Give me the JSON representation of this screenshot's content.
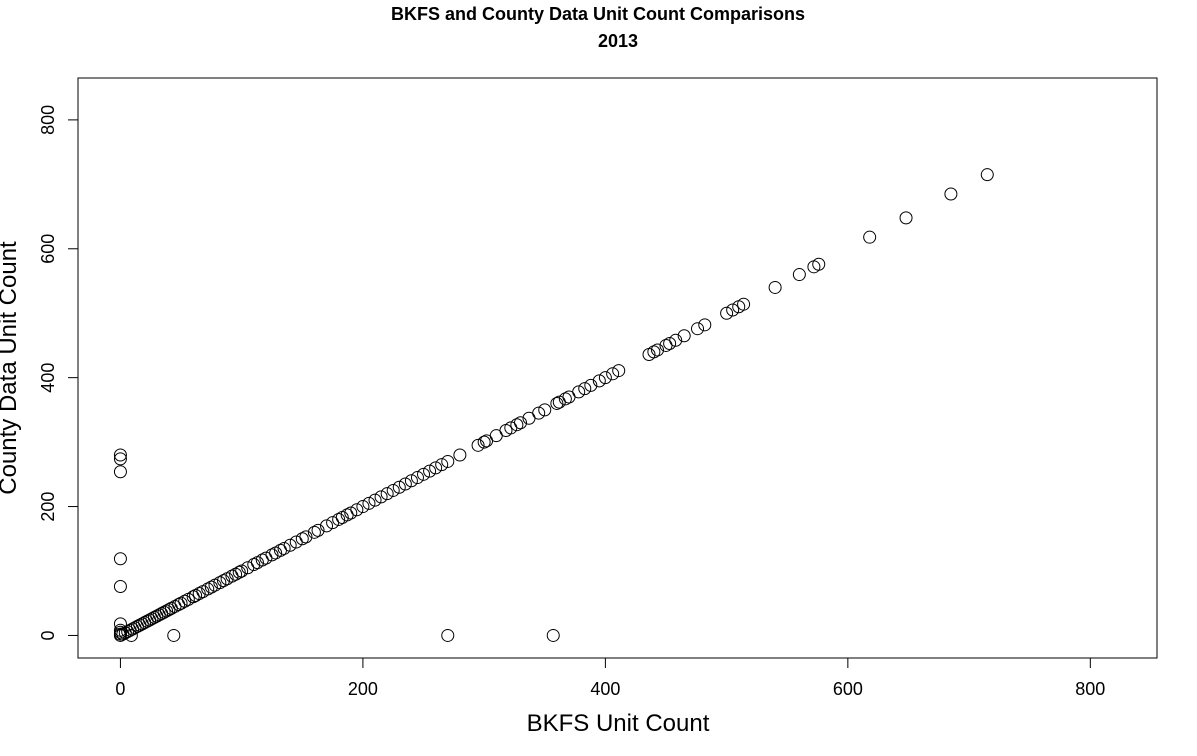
{
  "chart_data": {
    "type": "scatter",
    "title": "BKFS and County Data Unit Count Comparisons",
    "subtitle": "2013",
    "xlabel": "BKFS Unit Count",
    "ylabel": "County Data Unit Count",
    "xlim": [
      -35,
      855
    ],
    "ylim": [
      -35,
      865
    ],
    "x_ticks": [
      0,
      200,
      400,
      600,
      800
    ],
    "y_ticks": [
      0,
      200,
      400,
      600,
      800
    ],
    "grid": false,
    "marker": "open-circle",
    "points": [
      [
        0,
        0
      ],
      [
        0,
        2
      ],
      [
        0,
        5
      ],
      [
        0,
        8
      ],
      [
        0,
        18
      ],
      [
        0,
        76
      ],
      [
        0,
        119
      ],
      [
        0,
        254
      ],
      [
        0,
        274
      ],
      [
        0,
        280
      ],
      [
        9,
        0
      ],
      [
        44,
        0
      ],
      [
        270,
        0
      ],
      [
        357,
        0
      ],
      [
        2,
        2
      ],
      [
        4,
        4
      ],
      [
        6,
        6
      ],
      [
        8,
        8
      ],
      [
        10,
        10
      ],
      [
        12,
        12
      ],
      [
        14,
        14
      ],
      [
        16,
        16
      ],
      [
        18,
        18
      ],
      [
        20,
        20
      ],
      [
        22,
        22
      ],
      [
        24,
        24
      ],
      [
        26,
        26
      ],
      [
        28,
        28
      ],
      [
        30,
        30
      ],
      [
        32,
        32
      ],
      [
        34,
        34
      ],
      [
        36,
        36
      ],
      [
        38,
        38
      ],
      [
        40,
        40
      ],
      [
        42,
        42
      ],
      [
        45,
        45
      ],
      [
        48,
        48
      ],
      [
        50,
        50
      ],
      [
        53,
        53
      ],
      [
        56,
        56
      ],
      [
        60,
        60
      ],
      [
        62,
        62
      ],
      [
        65,
        65
      ],
      [
        68,
        68
      ],
      [
        72,
        72
      ],
      [
        75,
        75
      ],
      [
        78,
        78
      ],
      [
        82,
        82
      ],
      [
        85,
        85
      ],
      [
        88,
        88
      ],
      [
        92,
        92
      ],
      [
        95,
        95
      ],
      [
        98,
        98
      ],
      [
        100,
        100
      ],
      [
        105,
        105
      ],
      [
        110,
        110
      ],
      [
        113,
        113
      ],
      [
        117,
        117
      ],
      [
        120,
        120
      ],
      [
        125,
        125
      ],
      [
        128,
        128
      ],
      [
        132,
        132
      ],
      [
        135,
        135
      ],
      [
        140,
        140
      ],
      [
        145,
        145
      ],
      [
        150,
        150
      ],
      [
        153,
        153
      ],
      [
        160,
        160
      ],
      [
        163,
        163
      ],
      [
        170,
        170
      ],
      [
        175,
        175
      ],
      [
        180,
        180
      ],
      [
        183,
        183
      ],
      [
        187,
        187
      ],
      [
        190,
        190
      ],
      [
        195,
        195
      ],
      [
        200,
        200
      ],
      [
        205,
        205
      ],
      [
        210,
        210
      ],
      [
        215,
        215
      ],
      [
        220,
        220
      ],
      [
        225,
        225
      ],
      [
        230,
        230
      ],
      [
        235,
        235
      ],
      [
        240,
        240
      ],
      [
        245,
        245
      ],
      [
        250,
        250
      ],
      [
        255,
        255
      ],
      [
        260,
        260
      ],
      [
        265,
        265
      ],
      [
        270,
        270
      ],
      [
        280,
        280
      ],
      [
        295,
        295
      ],
      [
        300,
        300
      ],
      [
        302,
        302
      ],
      [
        310,
        310
      ],
      [
        318,
        318
      ],
      [
        322,
        322
      ],
      [
        327,
        327
      ],
      [
        330,
        330
      ],
      [
        337,
        337
      ],
      [
        345,
        345
      ],
      [
        350,
        350
      ],
      [
        360,
        360
      ],
      [
        362,
        362
      ],
      [
        367,
        367
      ],
      [
        370,
        370
      ],
      [
        378,
        378
      ],
      [
        383,
        383
      ],
      [
        388,
        388
      ],
      [
        395,
        395
      ],
      [
        400,
        400
      ],
      [
        406,
        406
      ],
      [
        411,
        411
      ],
      [
        436,
        436
      ],
      [
        440,
        440
      ],
      [
        443,
        443
      ],
      [
        450,
        450
      ],
      [
        453,
        453
      ],
      [
        458,
        458
      ],
      [
        465,
        465
      ],
      [
        476,
        476
      ],
      [
        482,
        482
      ],
      [
        500,
        500
      ],
      [
        505,
        505
      ],
      [
        510,
        510
      ],
      [
        514,
        514
      ],
      [
        540,
        540
      ],
      [
        560,
        560
      ],
      [
        572,
        572
      ],
      [
        576,
        576
      ],
      [
        618,
        618
      ],
      [
        648,
        648
      ],
      [
        685,
        685
      ],
      [
        715,
        715
      ]
    ]
  }
}
